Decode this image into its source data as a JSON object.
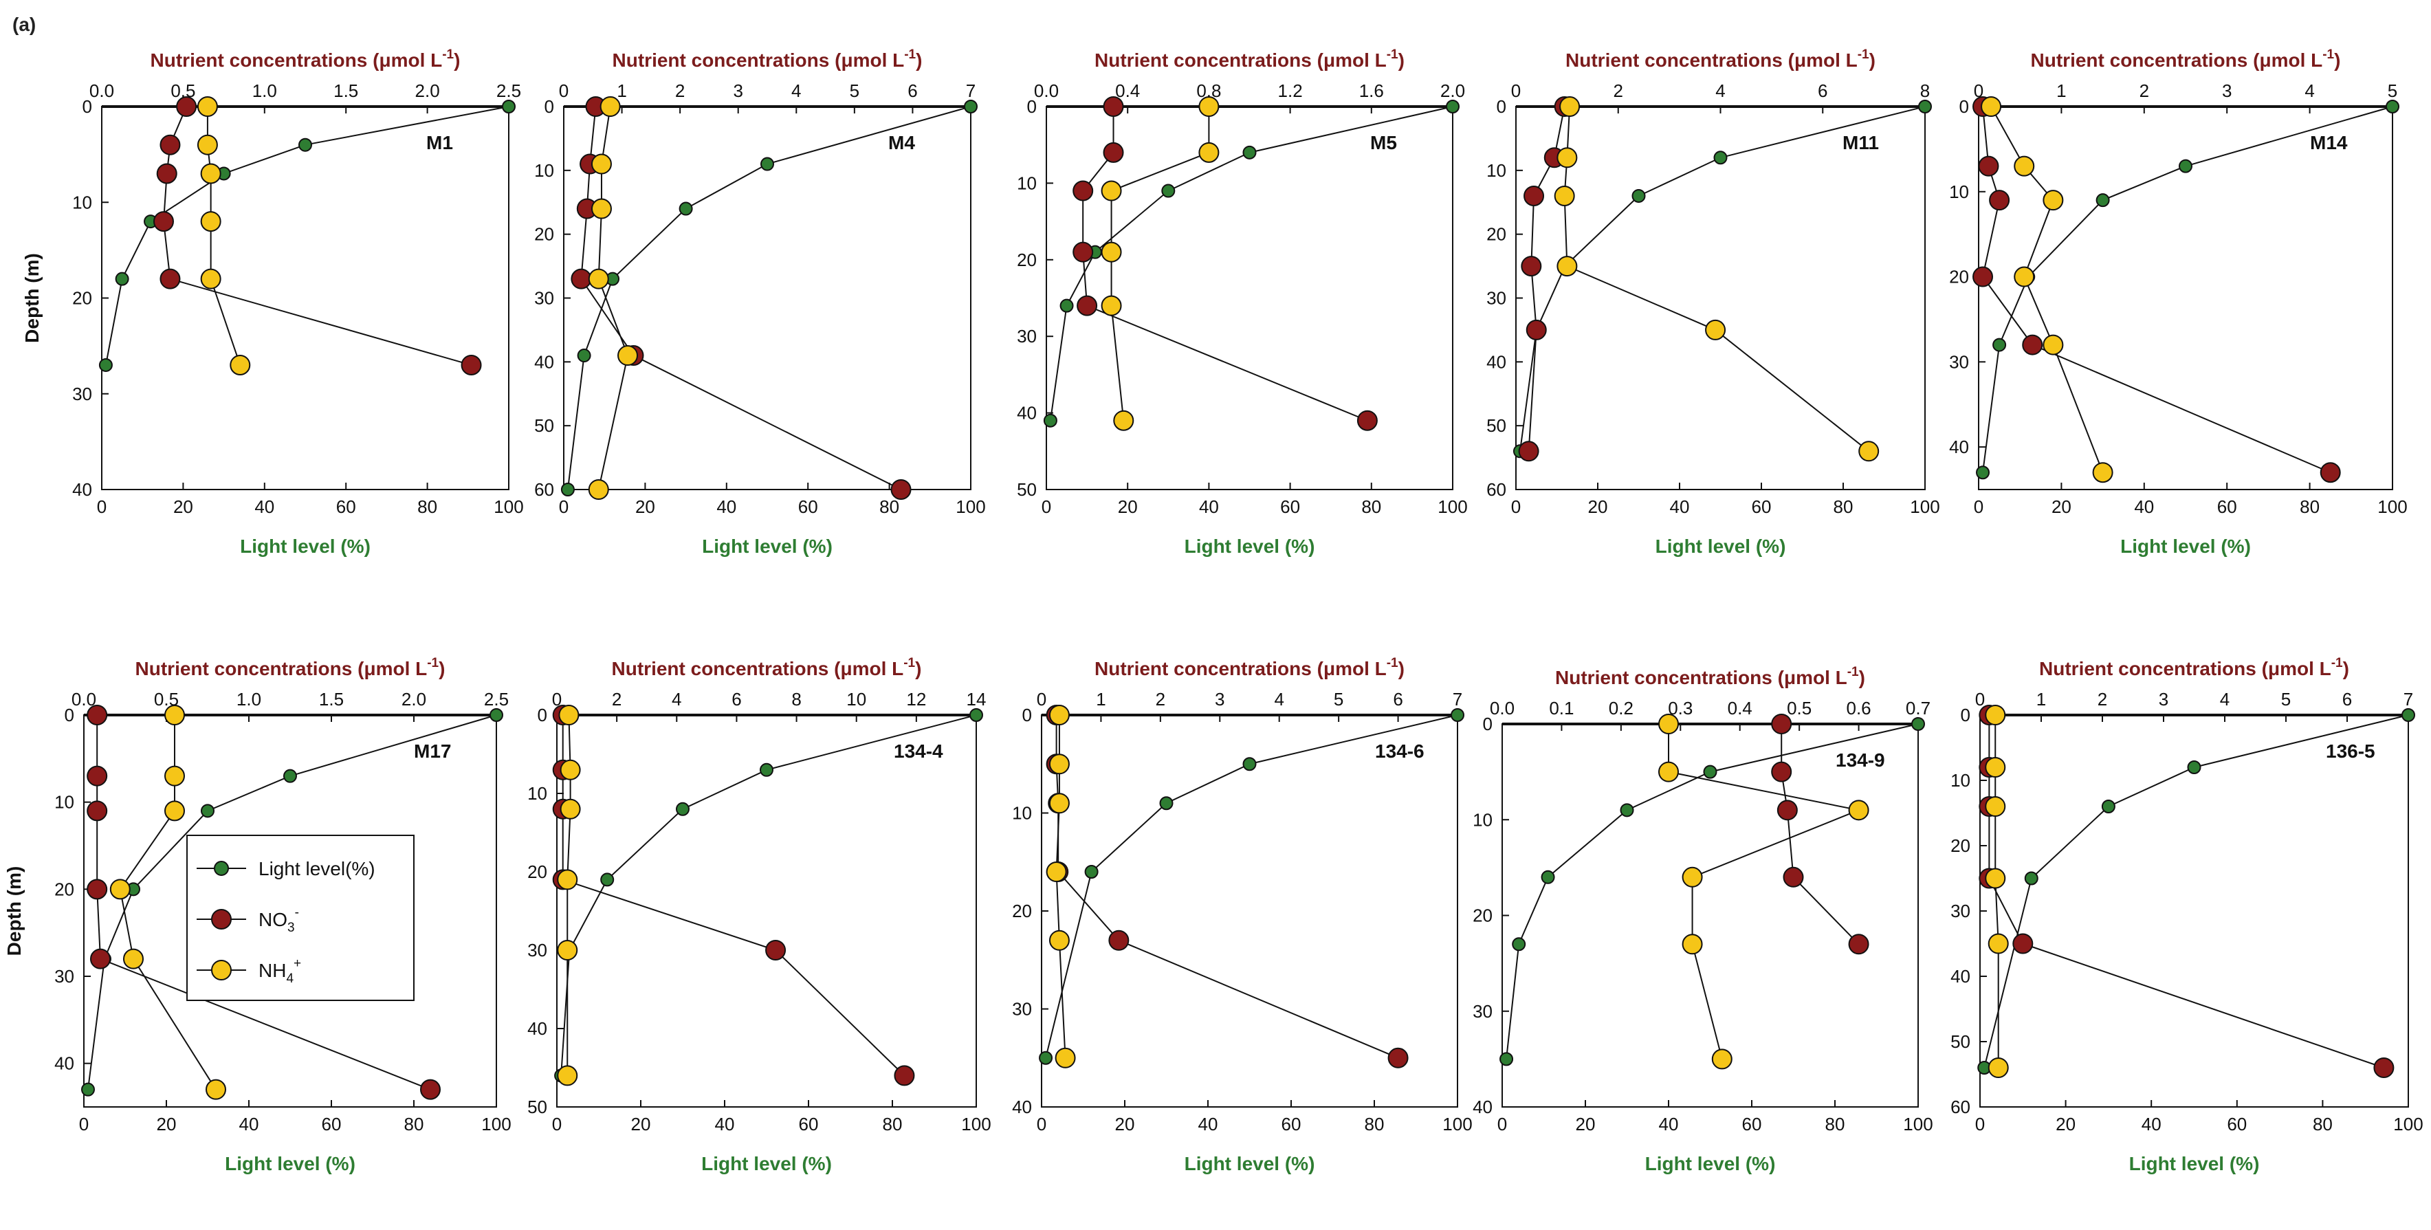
{
  "figure": {
    "panel_label": "(a)"
  },
  "colors": {
    "light": "#2e7d32",
    "no3": "#8b1a1a",
    "nh4": "#f5c518",
    "light_label": "#2e7d32",
    "nutrient_label": "#7b1c1c"
  },
  "legend": {
    "light": "Light level(%)",
    "no3": "NO",
    "no3_sub": "3",
    "no3_sup": "-",
    "nh4": "NH",
    "nh4_sub": "4",
    "nh4_sup": "+"
  },
  "chart_data": [
    {
      "type": "line",
      "station": "M1",
      "top_axis_label": "Nutrient concentrations (μmol L",
      "top_axis_sup": "-1",
      "top_axis_close": ")",
      "bottom_axis_label": "Light level (%)",
      "y_axis_label": "Depth (m)",
      "xlim_light": [
        0,
        100
      ],
      "xticks_light": [
        "0",
        "20",
        "40",
        "60",
        "80",
        "100"
      ],
      "xlim_nut": [
        0,
        2.5
      ],
      "xticks_nut": [
        "0.0",
        "0.5",
        "1.0",
        "1.5",
        "2.0",
        "2.5"
      ],
      "ylim": [
        0,
        40
      ],
      "yticks": [
        "0",
        "10",
        "20",
        "30",
        "40"
      ],
      "light": [
        [
          100,
          0
        ],
        [
          50,
          4
        ],
        [
          30,
          7
        ],
        [
          12,
          12
        ],
        [
          5,
          18
        ],
        [
          1,
          27
        ]
      ],
      "no3": [
        [
          0.52,
          0
        ],
        [
          0.42,
          4
        ],
        [
          0.4,
          7
        ],
        [
          0.38,
          12
        ],
        [
          0.42,
          18
        ],
        [
          2.27,
          27
        ]
      ],
      "nh4": [
        [
          0.65,
          0
        ],
        [
          0.65,
          4
        ],
        [
          0.67,
          7
        ],
        [
          0.67,
          12
        ],
        [
          0.67,
          18
        ],
        [
          0.85,
          27
        ]
      ]
    },
    {
      "type": "line",
      "station": "M4",
      "top_axis_label": "Nutrient concentrations (μmol L",
      "top_axis_sup": "-1",
      "top_axis_close": ")",
      "bottom_axis_label": "Light level (%)",
      "y_axis_label": "",
      "xlim_light": [
        0,
        100
      ],
      "xticks_light": [
        "0",
        "20",
        "40",
        "60",
        "80",
        "100"
      ],
      "xlim_nut": [
        0,
        7
      ],
      "xticks_nut": [
        "0",
        "1",
        "2",
        "3",
        "4",
        "5",
        "6",
        "7"
      ],
      "ylim": [
        0,
        60
      ],
      "yticks": [
        "0",
        "10",
        "20",
        "30",
        "40",
        "50",
        "60"
      ],
      "light": [
        [
          100,
          0
        ],
        [
          50,
          9
        ],
        [
          30,
          16
        ],
        [
          12,
          27
        ],
        [
          5,
          39
        ],
        [
          1,
          60
        ]
      ],
      "no3": [
        [
          0.55,
          0
        ],
        [
          0.45,
          9
        ],
        [
          0.4,
          16
        ],
        [
          0.3,
          27
        ],
        [
          1.2,
          39
        ],
        [
          5.8,
          60
        ]
      ],
      "nh4": [
        [
          0.8,
          0
        ],
        [
          0.65,
          9
        ],
        [
          0.65,
          16
        ],
        [
          0.6,
          27
        ],
        [
          1.1,
          39
        ],
        [
          0.6,
          60
        ]
      ]
    },
    {
      "type": "line",
      "station": "M5",
      "top_axis_label": "Nutrient concentrations (μmol L",
      "top_axis_sup": "-1",
      "top_axis_close": ")",
      "bottom_axis_label": "Light level (%)",
      "y_axis_label": "",
      "xlim_light": [
        0,
        100
      ],
      "xticks_light": [
        "0",
        "20",
        "40",
        "60",
        "80",
        "100"
      ],
      "xlim_nut": [
        0,
        2.0
      ],
      "xticks_nut": [
        "0.0",
        "0.4",
        "0.8",
        "1.2",
        "1.6",
        "2.0"
      ],
      "ylim": [
        0,
        50
      ],
      "yticks": [
        "0",
        "10",
        "20",
        "30",
        "40",
        "50"
      ],
      "light": [
        [
          100,
          0
        ],
        [
          50,
          6
        ],
        [
          30,
          11
        ],
        [
          12,
          19
        ],
        [
          5,
          26
        ],
        [
          1,
          41
        ]
      ],
      "no3": [
        [
          0.33,
          0
        ],
        [
          0.33,
          6
        ],
        [
          0.18,
          11
        ],
        [
          0.18,
          19
        ],
        [
          0.2,
          26
        ],
        [
          1.58,
          41
        ]
      ],
      "nh4": [
        [
          0.8,
          0
        ],
        [
          0.8,
          6
        ],
        [
          0.32,
          11
        ],
        [
          0.32,
          19
        ],
        [
          0.32,
          26
        ],
        [
          0.38,
          41
        ]
      ]
    },
    {
      "type": "line",
      "station": "M11",
      "top_axis_label": "Nutrient concentrations (μmol L",
      "top_axis_sup": "-1",
      "top_axis_close": ")",
      "bottom_axis_label": "Light level (%)",
      "y_axis_label": "",
      "xlim_light": [
        0,
        100
      ],
      "xticks_light": [
        "0",
        "20",
        "40",
        "60",
        "80",
        "100"
      ],
      "xlim_nut": [
        0,
        8
      ],
      "xticks_nut": [
        "0",
        "2",
        "4",
        "6",
        "8"
      ],
      "ylim": [
        0,
        60
      ],
      "yticks": [
        "0",
        "10",
        "20",
        "30",
        "40",
        "50",
        "60"
      ],
      "light": [
        [
          100,
          0
        ],
        [
          50,
          8
        ],
        [
          30,
          14
        ],
        [
          12,
          25
        ],
        [
          5,
          35
        ],
        [
          1,
          54
        ]
      ],
      "no3": [
        [
          0.95,
          0
        ],
        [
          0.75,
          8
        ],
        [
          0.35,
          14
        ],
        [
          0.3,
          25
        ],
        [
          0.4,
          35
        ],
        [
          0.25,
          54
        ]
      ],
      "nh4": [
        [
          1.05,
          0
        ],
        [
          1.0,
          8
        ],
        [
          0.95,
          14
        ],
        [
          1.0,
          25
        ],
        [
          3.9,
          35
        ],
        [
          6.9,
          54
        ]
      ]
    },
    {
      "type": "line",
      "station": "M14",
      "top_axis_label": "Nutrient concentrations (μmol L",
      "top_axis_sup": "-1",
      "top_axis_close": ")",
      "bottom_axis_label": "Light level (%)",
      "y_axis_label": "",
      "xlim_light": [
        0,
        100
      ],
      "xticks_light": [
        "0",
        "20",
        "40",
        "60",
        "80",
        "100"
      ],
      "xlim_nut": [
        0,
        5
      ],
      "xticks_nut": [
        "0",
        "1",
        "2",
        "3",
        "4",
        "5"
      ],
      "ylim": [
        0,
        45
      ],
      "yticks": [
        "0",
        "10",
        "20",
        "30",
        "40"
      ],
      "light": [
        [
          100,
          0
        ],
        [
          50,
          7
        ],
        [
          30,
          11
        ],
        [
          12,
          20
        ],
        [
          5,
          28
        ],
        [
          1,
          43
        ]
      ],
      "no3": [
        [
          0.05,
          0
        ],
        [
          0.12,
          7
        ],
        [
          0.25,
          11
        ],
        [
          0.05,
          20
        ],
        [
          0.65,
          28
        ],
        [
          4.25,
          43
        ]
      ],
      "nh4": [
        [
          0.15,
          0
        ],
        [
          0.55,
          7
        ],
        [
          0.9,
          11
        ],
        [
          0.55,
          20
        ],
        [
          0.9,
          28
        ],
        [
          1.5,
          43
        ]
      ]
    },
    {
      "type": "line",
      "station": "M17",
      "top_axis_label": "Nutrient concentrations (μmol L",
      "top_axis_sup": "-1",
      "top_axis_close": ")",
      "bottom_axis_label": "Light level (%)",
      "y_axis_label": "Depth (m)",
      "xlim_light": [
        0,
        100
      ],
      "xticks_light": [
        "0",
        "20",
        "40",
        "60",
        "80",
        "100"
      ],
      "xlim_nut": [
        0,
        2.5
      ],
      "xticks_nut": [
        "0.0",
        "0.5",
        "1.0",
        "1.5",
        "2.0",
        "2.5"
      ],
      "ylim": [
        0,
        45
      ],
      "yticks": [
        "0",
        "10",
        "20",
        "30",
        "40"
      ],
      "light": [
        [
          100,
          0
        ],
        [
          50,
          7
        ],
        [
          30,
          11
        ],
        [
          12,
          20
        ],
        [
          5,
          28
        ],
        [
          1,
          43
        ]
      ],
      "no3": [
        [
          0.08,
          0
        ],
        [
          0.08,
          7
        ],
        [
          0.08,
          11
        ],
        [
          0.08,
          20
        ],
        [
          0.1,
          28
        ],
        [
          2.1,
          43
        ]
      ],
      "nh4": [
        [
          0.55,
          0
        ],
        [
          0.55,
          7
        ],
        [
          0.55,
          11
        ],
        [
          0.22,
          20
        ],
        [
          0.3,
          28
        ],
        [
          0.8,
          43
        ]
      ]
    },
    {
      "type": "line",
      "station": "134-4",
      "top_axis_label": "Nutrient concentrations (μmol L",
      "top_axis_sup": "-1",
      "top_axis_close": ")",
      "bottom_axis_label": "Light level (%)",
      "y_axis_label": "",
      "xlim_light": [
        0,
        100
      ],
      "xticks_light": [
        "0",
        "20",
        "40",
        "60",
        "80",
        "100"
      ],
      "xlim_nut": [
        0,
        14
      ],
      "xticks_nut": [
        "0",
        "2",
        "4",
        "6",
        "8",
        "10",
        "12",
        "14"
      ],
      "ylim": [
        0,
        50
      ],
      "yticks": [
        "0",
        "10",
        "20",
        "30",
        "40",
        "50"
      ],
      "light": [
        [
          100,
          0
        ],
        [
          50,
          7
        ],
        [
          30,
          12
        ],
        [
          12,
          21
        ],
        [
          3,
          30
        ],
        [
          1,
          46
        ]
      ],
      "no3": [
        [
          0.2,
          0
        ],
        [
          0.2,
          7
        ],
        [
          0.2,
          12
        ],
        [
          0.2,
          21
        ],
        [
          7.3,
          30
        ],
        [
          11.6,
          46
        ]
      ],
      "nh4": [
        [
          0.4,
          0
        ],
        [
          0.45,
          7
        ],
        [
          0.45,
          12
        ],
        [
          0.35,
          21
        ],
        [
          0.35,
          30
        ],
        [
          0.35,
          46
        ]
      ]
    },
    {
      "type": "line",
      "station": "134-6",
      "top_axis_label": "Nutrient concentrations (μmol L",
      "top_axis_sup": "-1",
      "top_axis_close": ")",
      "bottom_axis_label": "Light level (%)",
      "y_axis_label": "",
      "xlim_light": [
        0,
        100
      ],
      "xticks_light": [
        "0",
        "20",
        "40",
        "60",
        "80",
        "100"
      ],
      "xlim_nut": [
        0,
        7
      ],
      "xticks_nut": [
        "0",
        "1",
        "2",
        "3",
        "4",
        "5",
        "6",
        "7"
      ],
      "ylim": [
        0,
        40
      ],
      "yticks": [
        "0",
        "10",
        "20",
        "30",
        "40"
      ],
      "light": [
        [
          100,
          0
        ],
        [
          50,
          5
        ],
        [
          30,
          9
        ],
        [
          12,
          16
        ],
        [
          1,
          35
        ]
      ],
      "no3": [
        [
          0.25,
          0
        ],
        [
          0.25,
          5
        ],
        [
          0.28,
          9
        ],
        [
          0.28,
          16
        ],
        [
          1.3,
          23
        ],
        [
          6.0,
          35
        ]
      ],
      "nh4": [
        [
          0.3,
          0
        ],
        [
          0.3,
          5
        ],
        [
          0.3,
          9
        ],
        [
          0.25,
          16
        ],
        [
          0.3,
          23
        ],
        [
          0.4,
          35
        ]
      ]
    },
    {
      "type": "line",
      "station": "134-9",
      "top_axis_label": "Nutrient concentrations (μmol L",
      "top_axis_sup": "-1",
      "top_axis_close": ")",
      "bottom_axis_label": "Light level (%)",
      "y_axis_label": "",
      "xlim_light": [
        0,
        100
      ],
      "xticks_light": [
        "0",
        "20",
        "40",
        "60",
        "80",
        "100"
      ],
      "xlim_nut": [
        0,
        0.7
      ],
      "xticks_nut": [
        "0.0",
        "0.1",
        "0.2",
        "0.3",
        "0.4",
        "0.5",
        "0.6",
        "0.7"
      ],
      "ylim": [
        0,
        40
      ],
      "yticks": [
        "0",
        "10",
        "20",
        "30",
        "40"
      ],
      "light": [
        [
          100,
          0
        ],
        [
          50,
          5
        ],
        [
          30,
          9
        ],
        [
          11,
          16
        ],
        [
          4,
          23
        ],
        [
          1,
          35
        ]
      ],
      "no3": [
        [
          0.47,
          0
        ],
        [
          0.47,
          5
        ],
        [
          0.48,
          9
        ],
        [
          0.49,
          16
        ],
        [
          0.6,
          23
        ]
      ],
      "nh4": [
        [
          0.28,
          0
        ],
        [
          0.28,
          5
        ],
        [
          0.6,
          9
        ],
        [
          0.32,
          16
        ],
        [
          0.32,
          23
        ],
        [
          0.37,
          35
        ]
      ]
    },
    {
      "type": "line",
      "station": "136-5",
      "top_axis_label": "Nutrient concentrations (μmol L",
      "top_axis_sup": "-1",
      "top_axis_close": ")",
      "bottom_axis_label": "Light level (%)",
      "y_axis_label": "",
      "xlim_light": [
        0,
        100
      ],
      "xticks_light": [
        "0",
        "20",
        "40",
        "60",
        "80",
        "100"
      ],
      "xlim_nut": [
        0,
        7
      ],
      "xticks_nut": [
        "0",
        "1",
        "2",
        "3",
        "4",
        "5",
        "6",
        "7"
      ],
      "ylim": [
        0,
        60
      ],
      "yticks": [
        "0",
        "10",
        "20",
        "30",
        "40",
        "50",
        "60"
      ],
      "light": [
        [
          100,
          0
        ],
        [
          50,
          8
        ],
        [
          30,
          14
        ],
        [
          12,
          25
        ],
        [
          1,
          54
        ]
      ],
      "no3": [
        [
          0.15,
          0
        ],
        [
          0.15,
          8
        ],
        [
          0.15,
          14
        ],
        [
          0.15,
          25
        ],
        [
          0.7,
          35
        ],
        [
          6.6,
          54
        ]
      ],
      "nh4": [
        [
          0.25,
          0
        ],
        [
          0.25,
          8
        ],
        [
          0.25,
          14
        ],
        [
          0.25,
          25
        ],
        [
          0.3,
          35
        ],
        [
          0.3,
          54
        ]
      ]
    }
  ]
}
